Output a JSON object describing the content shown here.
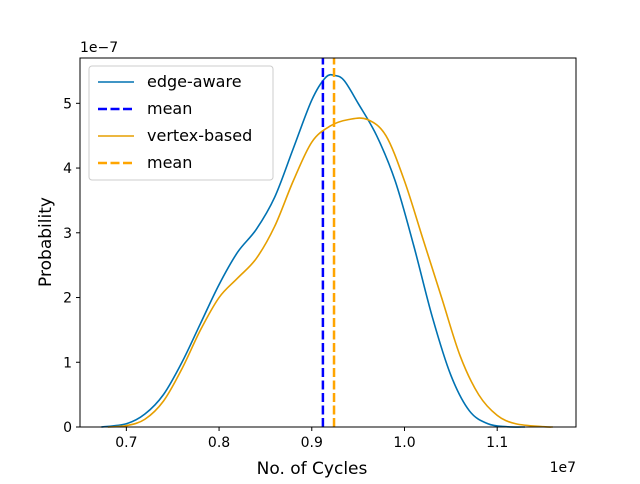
{
  "chart_data": {
    "type": "line",
    "xlabel": "No. of Cycles",
    "ylabel": "Probability",
    "x_offset_label": "1e7",
    "y_offset_label": "1e−7",
    "xlim": [
      0.65,
      1.185
    ],
    "ylim": [
      0,
      5.7
    ],
    "x_ticks": [
      0.7,
      0.8,
      0.9,
      1.0,
      1.1
    ],
    "x_tick_labels": [
      "0.7",
      "0.8",
      "0.9",
      "1.0",
      "1.1"
    ],
    "y_ticks": [
      0,
      1,
      2,
      3,
      4,
      5
    ],
    "y_tick_labels": [
      "0",
      "1",
      "2",
      "3",
      "4",
      "5"
    ],
    "grid": false,
    "legend_position": "top-left",
    "series": [
      {
        "name": "edge-aware",
        "color": "#0072b2",
        "style": "solid",
        "x": [
          0.673,
          0.7,
          0.72,
          0.74,
          0.76,
          0.78,
          0.8,
          0.82,
          0.84,
          0.86,
          0.88,
          0.9,
          0.915,
          0.925,
          0.935,
          0.95,
          0.97,
          0.99,
          1.01,
          1.03,
          1.05,
          1.07,
          1.09,
          1.11,
          1.13
        ],
        "y": [
          0.0,
          0.05,
          0.2,
          0.5,
          1.0,
          1.6,
          2.2,
          2.7,
          3.05,
          3.55,
          4.3,
          5.05,
          5.4,
          5.43,
          5.35,
          5.0,
          4.5,
          3.8,
          2.8,
          1.7,
          0.8,
          0.25,
          0.05,
          0.005,
          0.0
        ]
      },
      {
        "name": "mean",
        "color": "#0000ff",
        "style": "dashed",
        "x": [
          0.912,
          0.912
        ],
        "y": [
          0,
          5.7
        ]
      },
      {
        "name": "vertex-based",
        "color": "#e69f00",
        "style": "solid",
        "x": [
          0.68,
          0.7,
          0.72,
          0.74,
          0.76,
          0.78,
          0.8,
          0.82,
          0.84,
          0.86,
          0.88,
          0.9,
          0.92,
          0.94,
          0.96,
          0.98,
          1.0,
          1.02,
          1.04,
          1.06,
          1.08,
          1.1,
          1.12,
          1.15,
          1.16
        ],
        "y": [
          0.0,
          0.02,
          0.12,
          0.4,
          0.9,
          1.5,
          2.0,
          2.3,
          2.6,
          3.1,
          3.8,
          4.4,
          4.65,
          4.75,
          4.75,
          4.5,
          3.8,
          2.9,
          2.0,
          1.1,
          0.5,
          0.18,
          0.05,
          0.005,
          0.0
        ]
      },
      {
        "name": "mean",
        "color": "#ffa500",
        "style": "dashed",
        "x": [
          0.924,
          0.924
        ],
        "y": [
          0,
          5.7
        ]
      }
    ]
  }
}
